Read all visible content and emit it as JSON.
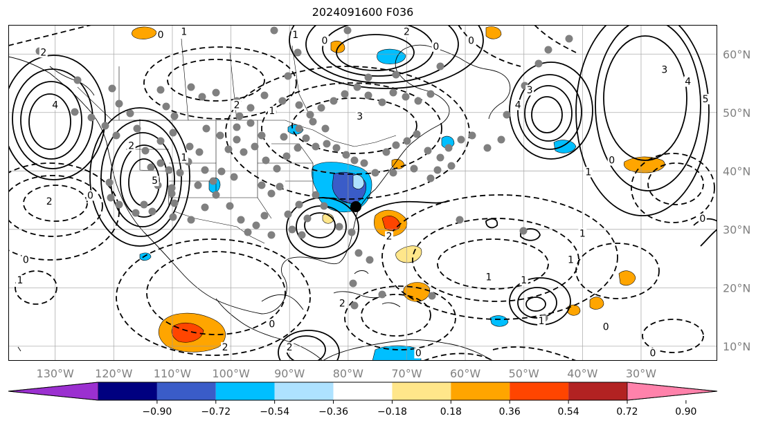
{
  "title": "2024091600 F036",
  "map": {
    "lon_range": [
      -138,
      -17
    ],
    "lat_range": [
      7.5,
      65
    ],
    "lon_ticks": [
      {
        "value": -130,
        "label": "130°W"
      },
      {
        "value": -120,
        "label": "120°W"
      },
      {
        "value": -110,
        "label": "110°W"
      },
      {
        "value": -100,
        "label": "100°W"
      },
      {
        "value": -90,
        "label": "90°W"
      },
      {
        "value": -80,
        "label": "80°W"
      },
      {
        "value": -70,
        "label": "70°W"
      },
      {
        "value": -60,
        "label": "60°W"
      },
      {
        "value": -50,
        "label": "50°W"
      },
      {
        "value": -40,
        "label": "40°W"
      },
      {
        "value": -30,
        "label": "30°W"
      }
    ],
    "lat_ticks": [
      {
        "value": 60,
        "label": "60°N"
      },
      {
        "value": 50,
        "label": "50°N"
      },
      {
        "value": 40,
        "label": "40°N"
      },
      {
        "value": 30,
        "label": "30°N"
      },
      {
        "value": 20,
        "label": "20°N"
      },
      {
        "value": 10,
        "label": "10°N"
      }
    ],
    "grid": true
  },
  "colorbar": {
    "ticks": [
      "−0.90",
      "−0.72",
      "−0.54",
      "−0.36",
      "−0.18",
      "0.18",
      "0.36",
      "0.54",
      "0.72",
      "0.90"
    ],
    "colors": [
      "#9b30d0",
      "#000080",
      "#3a5cc8",
      "#00bfff",
      "#aee2ff",
      "#ffffff",
      "#ffe68a",
      "#ffa500",
      "#ff4500",
      "#b22222",
      "#ff82ab"
    ]
  },
  "contour_labels": [
    {
      "text": "2",
      "lon": -132,
      "lat": 60
    },
    {
      "text": "0",
      "lon": -112,
      "lat": 63
    },
    {
      "text": "1",
      "lon": -108,
      "lat": 63.5
    },
    {
      "text": "4",
      "lon": -130,
      "lat": 51
    },
    {
      "text": "2",
      "lon": -117,
      "lat": 44
    },
    {
      "text": "5",
      "lon": -113,
      "lat": 38
    },
    {
      "text": "1",
      "lon": -108,
      "lat": 42
    },
    {
      "text": "2",
      "lon": -131,
      "lat": 34.5
    },
    {
      "text": "0",
      "lon": -124,
      "lat": 35.5
    },
    {
      "text": "2",
      "lon": -99,
      "lat": 51
    },
    {
      "text": "1",
      "lon": -93,
      "lat": 50
    },
    {
      "text": "3",
      "lon": -78,
      "lat": 49
    },
    {
      "text": "0",
      "lon": -84,
      "lat": 62
    },
    {
      "text": "1",
      "lon": -89,
      "lat": 63
    },
    {
      "text": "2",
      "lon": -70,
      "lat": 63.5
    },
    {
      "text": "0",
      "lon": -65,
      "lat": 61
    },
    {
      "text": "0",
      "lon": -59,
      "lat": 62
    },
    {
      "text": "3",
      "lon": -49,
      "lat": 53.5
    },
    {
      "text": "4",
      "lon": -51,
      "lat": 51
    },
    {
      "text": "1",
      "lon": -39,
      "lat": 39.5
    },
    {
      "text": "0",
      "lon": -35,
      "lat": 41.5
    },
    {
      "text": "3",
      "lon": -26,
      "lat": 57
    },
    {
      "text": "4",
      "lon": -22,
      "lat": 55
    },
    {
      "text": "5",
      "lon": -19,
      "lat": 52
    },
    {
      "text": "0",
      "lon": -19.5,
      "lat": 31.5
    },
    {
      "text": "1",
      "lon": -40,
      "lat": 29
    },
    {
      "text": "1",
      "lon": -42,
      "lat": 24.5
    },
    {
      "text": "2",
      "lon": -73,
      "lat": 28.5
    },
    {
      "text": "1",
      "lon": -50,
      "lat": 21
    },
    {
      "text": "1",
      "lon": -56,
      "lat": 21.5
    },
    {
      "text": "1",
      "lon": -47,
      "lat": 14
    },
    {
      "text": "0",
      "lon": -36,
      "lat": 13
    },
    {
      "text": "0",
      "lon": -135,
      "lat": 24.5
    },
    {
      "text": "1",
      "lon": -136,
      "lat": 21
    },
    {
      "text": "0",
      "lon": -93,
      "lat": 13.5
    },
    {
      "text": "2",
      "lon": -101,
      "lat": 9.5
    },
    {
      "text": "2",
      "lon": -90,
      "lat": 9.5
    },
    {
      "text": "2",
      "lon": -81,
      "lat": 17
    },
    {
      "text": "0",
      "lon": -68,
      "lat": 8.5
    },
    {
      "text": "0",
      "lon": -28,
      "lat": 8.5
    }
  ],
  "legend_icons": {
    "station": "grey-station-dot",
    "analysis_point": "black-target-dot"
  }
}
